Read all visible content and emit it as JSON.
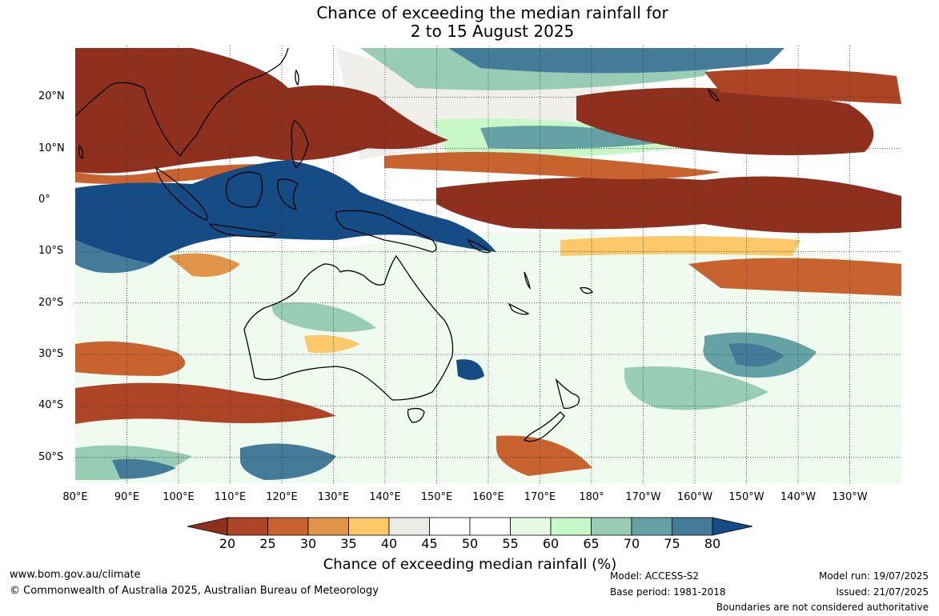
{
  "title": {
    "line1": "Chance of exceeding the median rainfall for",
    "line2": "2 to 15 August 2025"
  },
  "map": {
    "lat_labels": [
      "20°N",
      "10°N",
      "0°",
      "10°S",
      "20°S",
      "30°S",
      "40°S",
      "50°S"
    ],
    "lon_labels": [
      "80°E",
      "90°E",
      "100°E",
      "110°E",
      "120°E",
      "130°E",
      "140°E",
      "150°E",
      "160°E",
      "170°E",
      "180°",
      "170°W",
      "160°W",
      "150°W",
      "140°W",
      "130°W"
    ],
    "lat_values": [
      20,
      10,
      0,
      -10,
      -20,
      -30,
      -40,
      -50
    ],
    "lon_values": [
      80,
      90,
      100,
      110,
      120,
      130,
      140,
      150,
      160,
      170,
      180,
      190,
      200,
      210,
      220,
      230
    ],
    "lat_range": [
      -55,
      30
    ],
    "lon_range": [
      80,
      240
    ]
  },
  "colorbar": {
    "ticks": [
      "20",
      "25",
      "30",
      "35",
      "40",
      "45",
      "50",
      "55",
      "60",
      "65",
      "70",
      "75",
      "80"
    ],
    "colors": [
      "#8f2f1d",
      "#ad4426",
      "#c86330",
      "#e09548",
      "#fcc86a",
      "#ecebe7",
      "#ffffff",
      "#ffffff",
      "#e6f8e6",
      "#c8f7c8",
      "#98ccb5",
      "#65a2a5",
      "#447b99",
      "#154c86"
    ],
    "label": "Chance of exceeding median rainfall (%)"
  },
  "footer": {
    "website": "www.bom.gov.au/climate",
    "copyright": "© Commonwealth of Australia 2025, Australian Bureau of Meteorology",
    "model": "Model: ACCESS-S2",
    "base_period": "Base period: 1981-2018",
    "model_run": "Model run: 19/07/2025",
    "issued": "Issued: 21/07/2025",
    "boundaries": "Boundaries are not considered authoritative"
  }
}
